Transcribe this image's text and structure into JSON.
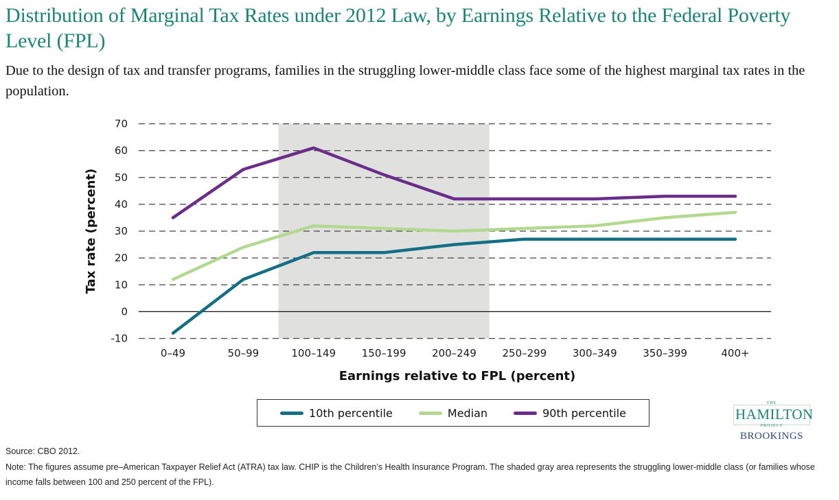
{
  "header": {
    "title": "Distribution of Marginal Tax Rates under 2012 Law, by Earnings Relative to the Federal Poverty Level (FPL)",
    "subtitle": "Due to the design of tax and transfer programs, families in the struggling lower-middle class face some of the highest marginal tax rates in the population."
  },
  "chart_data": {
    "type": "line",
    "title": "Distribution of Marginal Tax Rates under 2012 Law, by Earnings Relative to the Federal Poverty Level (FPL)",
    "xlabel": "Earnings relative to FPL (percent)",
    "ylabel": "Tax rate (percent)",
    "categories": [
      "0–49",
      "50–99",
      "100–149",
      "150–199",
      "200–249",
      "250–299",
      "300–349",
      "350–399",
      "400+"
    ],
    "ylim": [
      -10,
      70
    ],
    "yticks": [
      -10,
      0,
      10,
      20,
      30,
      40,
      50,
      60,
      70
    ],
    "grid": true,
    "legend_position": "bottom",
    "shaded_region": {
      "from_category": "100–149",
      "to_category": "200–249",
      "label": "struggling lower-middle class",
      "color": "#e0e0de"
    },
    "series": [
      {
        "name": "10th percentile",
        "color": "#146f85",
        "values": [
          -8,
          12,
          22,
          22,
          25,
          27,
          27,
          27,
          27
        ]
      },
      {
        "name": "Median",
        "color": "#b3d88f",
        "values": [
          12,
          24,
          32,
          31,
          30,
          31,
          32,
          35,
          37
        ]
      },
      {
        "name": "90th percentile",
        "color": "#6a2e8a",
        "values": [
          35,
          53,
          61,
          51,
          42,
          42,
          42,
          43,
          43
        ]
      }
    ]
  },
  "logo": {
    "the": "THE",
    "hamilton": "HAMILTON",
    "project": "PROJECT",
    "brookings": "BROOKINGS"
  },
  "footer": {
    "source": "Source: CBO 2012.",
    "note": "Note: The figures assume pre–American Taxpayer Relief Act (ATRA) tax law. CHIP is the Children’s Health Insurance Program. The shaded gray area represents the struggling lower-middle class (or families whose income falls between 100 and 250 percent of the FPL)."
  }
}
